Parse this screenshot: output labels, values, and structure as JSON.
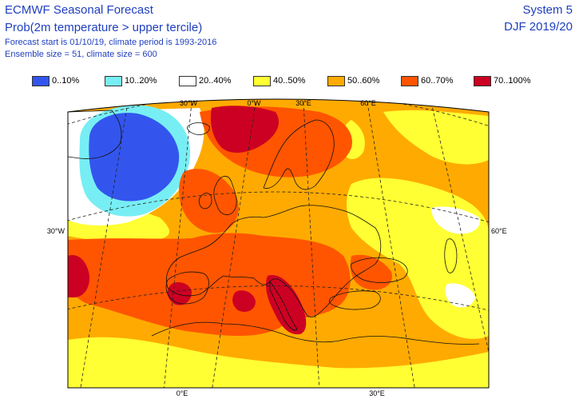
{
  "header": {
    "title": "ECMWF Seasonal Forecast",
    "subtitle": "Prob(2m temperature > upper tercile)",
    "forecast_line": "Forecast start is 01/10/19, climate period is 1993-2016",
    "ensemble_line": "Ensemble size = 51, climate size = 600",
    "system": "System 5",
    "season": "DJF 2019/20"
  },
  "legend": [
    {
      "label": "0..10%",
      "color": "#3355ee"
    },
    {
      "label": "10..20%",
      "color": "#77eef4"
    },
    {
      "label": "20..40%",
      "color": "#ffffff"
    },
    {
      "label": "40..50%",
      "color": "#ffff33"
    },
    {
      "label": "50..60%",
      "color": "#ffaa00"
    },
    {
      "label": "60..70%",
      "color": "#ff5500"
    },
    {
      "label": "70..100%",
      "color": "#cc0022"
    }
  ],
  "map": {
    "graticule_labels": {
      "top": [
        "30°W",
        "0°W",
        "30°E",
        "60°E"
      ],
      "left": "30°W",
      "right": "60°E",
      "bottom": [
        "0°E",
        "30°E"
      ]
    }
  }
}
